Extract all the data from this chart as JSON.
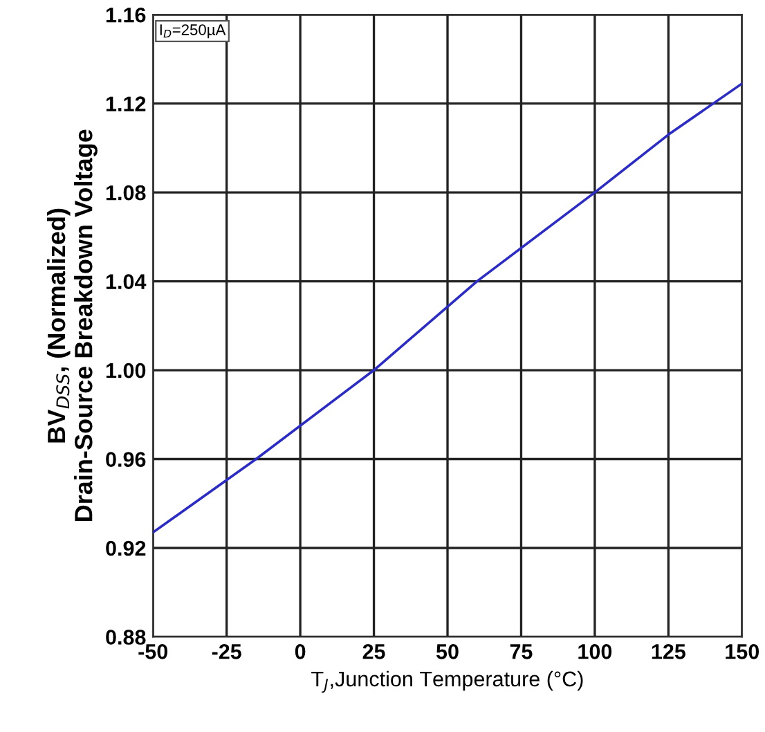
{
  "chart_data": {
    "type": "line",
    "xlabel": "T$_{J}$,Junction Temperature (°C)",
    "ylabel": "BV$_{DSS}$, (Normalized)\nDrain-Source Breakdown Voltage",
    "annotations": [
      "I$_{D}$=250µA"
    ],
    "series": [
      {
        "color": "#2b2bc8",
        "x": [
          -50,
          -15,
          25,
          60,
          100,
          125,
          150
        ],
        "values": [
          0.927,
          0.96,
          1.0,
          1.04,
          1.08,
          1.106,
          1.129
        ]
      }
    ],
    "xlim": [
      -50,
      150
    ],
    "xticks": [
      -50,
      -25,
      0,
      25,
      50,
      75,
      100,
      125,
      150
    ],
    "ylim": [
      0.88,
      1.16
    ],
    "yticks": [
      {
        "value": 0.88,
        "label": "0.88"
      },
      {
        "value": 0.92,
        "label": "0.92"
      },
      {
        "value": 0.96,
        "label": "0.96"
      },
      {
        "value": 1.0,
        "label": "1.00"
      },
      {
        "value": 1.04,
        "label": "1.04"
      },
      {
        "value": 1.08,
        "label": "1.08"
      },
      {
        "value": 1.12,
        "label": "1.12"
      },
      {
        "value": 1.16,
        "label": "1.16"
      }
    ],
    "grid": true,
    "marker": "none",
    "line_style": "solid"
  }
}
